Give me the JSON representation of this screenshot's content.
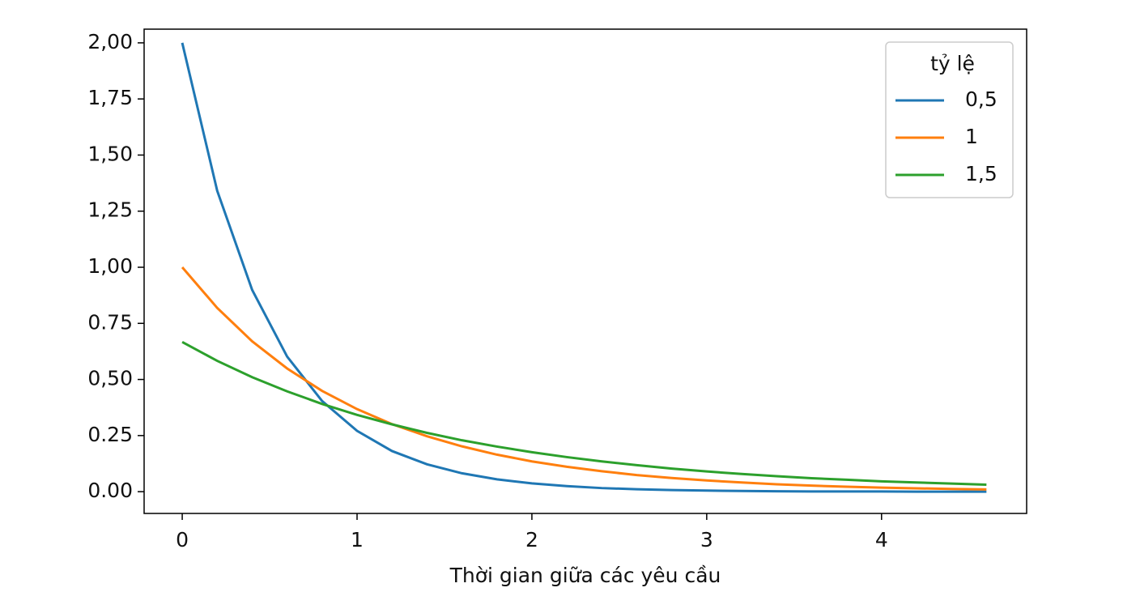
{
  "chart_data": {
    "type": "line",
    "xlabel": "Thời gian giữa các yêu cầu",
    "x": [
      0,
      0.2,
      0.4,
      0.6,
      0.8,
      1.0,
      1.2,
      1.4,
      1.6,
      1.8,
      2.0,
      2.2,
      2.4,
      2.6,
      2.8,
      3.0,
      3.2,
      3.4,
      3.6,
      3.8,
      4.0,
      4.2,
      4.4,
      4.6
    ],
    "series": [
      {
        "name": "0,5",
        "color": "#1f77b4",
        "values": [
          2,
          1.341,
          0.899,
          0.602,
          0.404,
          0.271,
          0.181,
          0.122,
          0.082,
          0.055,
          0.037,
          0.025,
          0.016,
          0.011,
          0.007,
          0.005,
          0.003,
          0.002,
          0.001,
          0.001,
          0.001,
          0.0,
          0.0,
          0.0
        ]
      },
      {
        "name": "1",
        "color": "#ff7f0e",
        "values": [
          1,
          0.819,
          0.67,
          0.549,
          0.449,
          0.368,
          0.301,
          0.247,
          0.202,
          0.165,
          0.135,
          0.111,
          0.091,
          0.074,
          0.061,
          0.05,
          0.041,
          0.033,
          0.027,
          0.022,
          0.018,
          0.015,
          0.012,
          0.01
        ]
      },
      {
        "name": "1,5",
        "color": "#2ca02c",
        "values": [
          0.667,
          0.583,
          0.51,
          0.447,
          0.391,
          0.342,
          0.3,
          0.262,
          0.229,
          0.201,
          0.176,
          0.154,
          0.135,
          0.118,
          0.103,
          0.09,
          0.079,
          0.069,
          0.06,
          0.053,
          0.046,
          0.041,
          0.036,
          0.031
        ]
      }
    ],
    "legend_title": "tỷ lệ",
    "legend": "upper right",
    "xlim": [
      -0.218,
      4.83
    ],
    "ylim": [
      -0.097,
      2.061
    ],
    "xticks": [
      0,
      1,
      2,
      3,
      4
    ],
    "yticks": [
      {
        "value": 0,
        "label": "0.00"
      },
      {
        "value": 0.25,
        "label": "0.25"
      },
      {
        "value": 0.5,
        "label": "0,50"
      },
      {
        "value": 0.75,
        "label": "0.75"
      },
      {
        "value": 1,
        "label": "1,00"
      },
      {
        "value": 1.25,
        "label": "1,25"
      },
      {
        "value": 1.5,
        "label": "1,50"
      },
      {
        "value": 1.75,
        "label": "1,75"
      },
      {
        "value": 2,
        "label": "2,00"
      }
    ],
    "grid": false
  }
}
